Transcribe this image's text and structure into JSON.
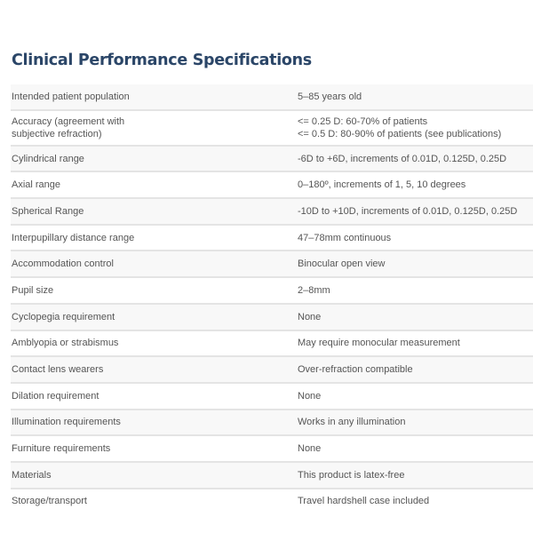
{
  "title": "Clinical Performance Specifications",
  "rows": [
    {
      "label": [
        "Intended patient population"
      ],
      "value": [
        "5–85 years old"
      ]
    },
    {
      "label": [
        "Accuracy (agreement with",
        "subjective refraction)"
      ],
      "value": [
        "<= 0.25 D: 60-70% of patients",
        "<= 0.5 D: 80-90% of patients (see publications)"
      ]
    },
    {
      "label": [
        "Cylindrical range"
      ],
      "value": [
        "-6D to +6D, increments of 0.01D, 0.125D, 0.25D"
      ]
    },
    {
      "label": [
        "Axial range"
      ],
      "value": [
        "0–180º, increments of 1, 5, 10 degrees"
      ]
    },
    {
      "label": [
        "Spherical Range"
      ],
      "value": [
        "-10D to +10D, increments of 0.01D, 0.125D, 0.25D"
      ]
    },
    {
      "label": [
        "Interpupillary distance range"
      ],
      "value": [
        "47–78mm continuous"
      ]
    },
    {
      "label": [
        "Accommodation control"
      ],
      "value": [
        "Binocular open view"
      ]
    },
    {
      "label": [
        "Pupil size"
      ],
      "value": [
        "2–8mm"
      ]
    },
    {
      "label": [
        "Cyclopegia requirement"
      ],
      "value": [
        "None"
      ]
    },
    {
      "label": [
        "Amblyopia or strabismus"
      ],
      "value": [
        "May require monocular measurement"
      ]
    },
    {
      "label": [
        "Contact lens wearers"
      ],
      "value": [
        "Over-refraction compatible"
      ]
    },
    {
      "label": [
        "Dilation requirement"
      ],
      "value": [
        "None"
      ]
    },
    {
      "label": [
        "Illumination requirements"
      ],
      "value": [
        "Works in any illumination"
      ]
    },
    {
      "label": [
        "Furniture requirements"
      ],
      "value": [
        "None"
      ]
    },
    {
      "label": [
        "Materials"
      ],
      "value": [
        "This product is latex-free"
      ]
    },
    {
      "label": [
        "Storage/transport"
      ],
      "value": [
        "Travel hardshell case included"
      ]
    }
  ]
}
